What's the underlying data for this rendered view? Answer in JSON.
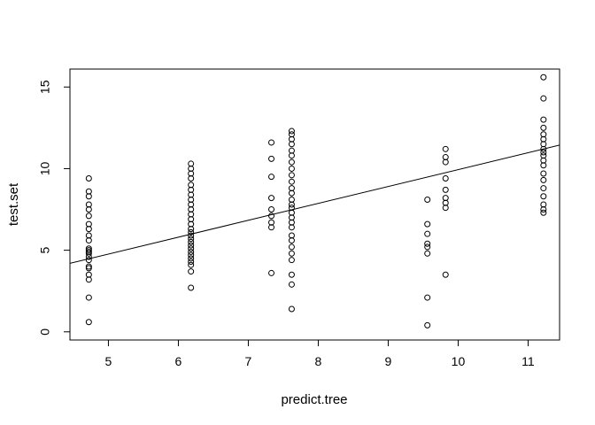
{
  "chart_data": {
    "type": "scatter",
    "title": "",
    "xlabel": "predict.tree",
    "ylabel": "test.set",
    "xlim": [
      4.45,
      11.45
    ],
    "ylim": [
      -0.5,
      16.1
    ],
    "x_ticks": [
      5,
      6,
      7,
      8,
      9,
      10,
      11
    ],
    "y_ticks": [
      0,
      5,
      10,
      15
    ],
    "x_tick_labels": [
      "5",
      "6",
      "7",
      "8",
      "9",
      "10",
      "11"
    ],
    "y_tick_labels": [
      "0",
      "5",
      "10",
      "15"
    ],
    "grid": false,
    "legend": "none",
    "point_style": "open-circle",
    "fit_line": {
      "intercept": -0.41,
      "slope": 1.035
    },
    "points": [
      [
        4.72,
        0.6
      ],
      [
        4.72,
        2.1
      ],
      [
        4.72,
        3.2
      ],
      [
        4.72,
        3.5
      ],
      [
        4.72,
        3.9
      ],
      [
        4.72,
        4.0
      ],
      [
        4.72,
        4.4
      ],
      [
        4.72,
        4.6
      ],
      [
        4.72,
        4.8
      ],
      [
        4.72,
        4.9
      ],
      [
        4.72,
        5.0
      ],
      [
        4.72,
        5.1
      ],
      [
        4.72,
        5.6
      ],
      [
        4.72,
        5.9
      ],
      [
        4.72,
        6.3
      ],
      [
        4.72,
        6.6
      ],
      [
        4.72,
        7.1
      ],
      [
        4.72,
        7.5
      ],
      [
        4.72,
        7.8
      ],
      [
        4.72,
        8.3
      ],
      [
        4.72,
        8.6
      ],
      [
        4.72,
        9.4
      ],
      [
        6.18,
        2.7
      ],
      [
        6.18,
        3.7
      ],
      [
        6.18,
        4.1
      ],
      [
        6.18,
        4.3
      ],
      [
        6.18,
        4.5
      ],
      [
        6.18,
        4.7
      ],
      [
        6.18,
        4.9
      ],
      [
        6.18,
        5.1
      ],
      [
        6.18,
        5.3
      ],
      [
        6.18,
        5.5
      ],
      [
        6.18,
        5.7
      ],
      [
        6.18,
        5.9
      ],
      [
        6.18,
        6.1
      ],
      [
        6.18,
        6.3
      ],
      [
        6.18,
        6.6
      ],
      [
        6.18,
        6.9
      ],
      [
        6.18,
        7.2
      ],
      [
        6.18,
        7.5
      ],
      [
        6.18,
        7.8
      ],
      [
        6.18,
        8.1
      ],
      [
        6.18,
        8.4
      ],
      [
        6.18,
        8.7
      ],
      [
        6.18,
        9.0
      ],
      [
        6.18,
        9.4
      ],
      [
        6.18,
        9.7
      ],
      [
        6.18,
        10.0
      ],
      [
        6.18,
        10.3
      ],
      [
        7.33,
        3.6
      ],
      [
        7.33,
        6.4
      ],
      [
        7.33,
        6.7
      ],
      [
        7.33,
        7.1
      ],
      [
        7.33,
        7.5
      ],
      [
        7.33,
        8.2
      ],
      [
        7.33,
        9.5
      ],
      [
        7.33,
        10.6
      ],
      [
        7.33,
        11.6
      ],
      [
        7.62,
        1.4
      ],
      [
        7.62,
        2.9
      ],
      [
        7.62,
        3.5
      ],
      [
        7.62,
        4.4
      ],
      [
        7.62,
        4.8
      ],
      [
        7.62,
        5.2
      ],
      [
        7.62,
        5.6
      ],
      [
        7.62,
        5.9
      ],
      [
        7.62,
        6.4
      ],
      [
        7.62,
        6.7
      ],
      [
        7.62,
        7.0
      ],
      [
        7.62,
        7.3
      ],
      [
        7.62,
        7.6
      ],
      [
        7.62,
        7.8
      ],
      [
        7.62,
        8.1
      ],
      [
        7.62,
        8.5
      ],
      [
        7.62,
        8.8
      ],
      [
        7.62,
        9.2
      ],
      [
        7.62,
        9.6
      ],
      [
        7.62,
        10.0
      ],
      [
        7.62,
        10.4
      ],
      [
        7.62,
        10.8
      ],
      [
        7.62,
        11.1
      ],
      [
        7.62,
        11.5
      ],
      [
        7.62,
        11.8
      ],
      [
        7.62,
        12.1
      ],
      [
        7.62,
        12.3
      ],
      [
        9.56,
        0.4
      ],
      [
        9.56,
        2.1
      ],
      [
        9.56,
        4.8
      ],
      [
        9.56,
        5.2
      ],
      [
        9.56,
        5.4
      ],
      [
        9.56,
        6.0
      ],
      [
        9.56,
        6.6
      ],
      [
        9.56,
        8.1
      ],
      [
        9.82,
        3.5
      ],
      [
        9.82,
        7.6
      ],
      [
        9.82,
        7.9
      ],
      [
        9.82,
        8.2
      ],
      [
        9.82,
        8.7
      ],
      [
        9.82,
        9.4
      ],
      [
        9.82,
        10.4
      ],
      [
        9.82,
        10.7
      ],
      [
        9.82,
        11.2
      ],
      [
        11.22,
        7.3
      ],
      [
        11.22,
        7.5
      ],
      [
        11.22,
        7.8
      ],
      [
        11.22,
        8.3
      ],
      [
        11.22,
        8.8
      ],
      [
        11.22,
        9.3
      ],
      [
        11.22,
        9.7
      ],
      [
        11.22,
        10.2
      ],
      [
        11.22,
        10.5
      ],
      [
        11.22,
        10.8
      ],
      [
        11.22,
        11.0
      ],
      [
        11.22,
        11.2
      ],
      [
        11.22,
        11.5
      ],
      [
        11.22,
        11.8
      ],
      [
        11.22,
        12.1
      ],
      [
        11.22,
        12.5
      ],
      [
        11.22,
        13.0
      ],
      [
        11.22,
        14.3
      ],
      [
        11.22,
        15.6
      ]
    ]
  }
}
